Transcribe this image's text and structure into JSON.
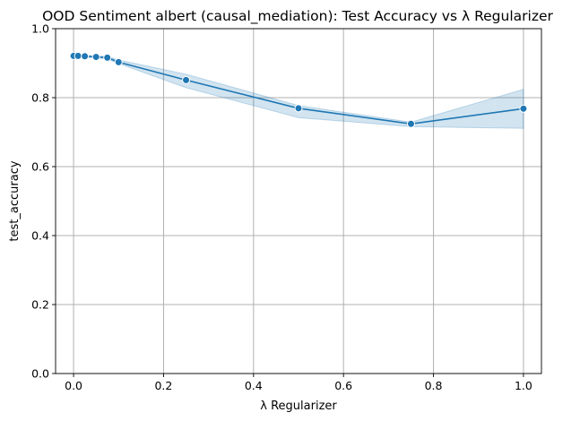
{
  "chart_data": {
    "type": "line",
    "title": "OOD Sentiment albert (causal_mediation): Test Accuracy vs λ Regularizer",
    "xlabel": "λ Regularizer",
    "ylabel": "test_accuracy",
    "xlim": [
      -0.04,
      1.04
    ],
    "ylim": [
      0.0,
      1.0
    ],
    "xticks": [
      0.0,
      0.2,
      0.4,
      0.6,
      0.8,
      1.0
    ],
    "xtick_labels": [
      "0.0",
      "0.2",
      "0.4",
      "0.6",
      "0.8",
      "1.0"
    ],
    "yticks": [
      0.0,
      0.2,
      0.4,
      0.6,
      0.8,
      1.0
    ],
    "ytick_labels": [
      "0.0",
      "0.2",
      "0.4",
      "0.6",
      "0.8",
      "1.0"
    ],
    "grid": true,
    "legend": "none",
    "color": "#1f77b4",
    "series": [
      {
        "x": [
          0.0,
          0.01,
          0.025,
          0.05,
          0.075,
          0.1,
          0.25,
          0.5,
          0.75,
          1.0
        ],
        "y": [
          0.921,
          0.921,
          0.92,
          0.918,
          0.916,
          0.903,
          0.851,
          0.769,
          0.724,
          0.768
        ],
        "ci_low": [
          0.919,
          0.918,
          0.917,
          0.915,
          0.912,
          0.899,
          0.829,
          0.742,
          0.716,
          0.711
        ],
        "ci_high": [
          0.923,
          0.923,
          0.923,
          0.921,
          0.92,
          0.909,
          0.868,
          0.777,
          0.729,
          0.824
        ]
      }
    ]
  }
}
